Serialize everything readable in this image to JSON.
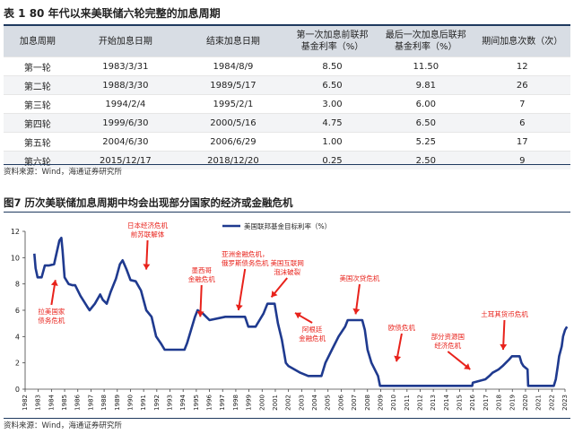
{
  "table": {
    "title": "表 1 80 年代以来美联储六轮完整的加息周期",
    "headers": [
      "加息周期",
      "开始加息日期",
      "结束加息日期",
      "第一次加息前联邦\n基金利率（%）",
      "最后一次加息后联邦\n基金利率（%）",
      "期间加息次数（次）"
    ],
    "rows": [
      [
        "第一轮",
        "1983/3/31",
        "1984/8/9",
        "8.50",
        "11.50",
        "12"
      ],
      [
        "第二轮",
        "1988/3/30",
        "1989/5/17",
        "6.50",
        "9.81",
        "26"
      ],
      [
        "第三轮",
        "1994/2/4",
        "1995/2/1",
        "3.00",
        "6.00",
        "7"
      ],
      [
        "第四轮",
        "1999/6/30",
        "2000/5/16",
        "4.75",
        "6.50",
        "6"
      ],
      [
        "第五轮",
        "2004/6/30",
        "2006/6/29",
        "1.00",
        "5.25",
        "17"
      ],
      [
        "第六轮",
        "2015/12/17",
        "2018/12/20",
        "0.25",
        "2.50",
        "9"
      ]
    ],
    "source": "资料来源：Wind，海通证券研究所"
  },
  "figure": {
    "title": "图7  历次美联储加息周期中均会出现部分国家的经济或金融危机",
    "source": "资料来源：Wind，海通证券研究所"
  },
  "chart_data": {
    "type": "line",
    "title": "",
    "xlabel": "",
    "ylabel": "",
    "ylim": [
      0,
      12
    ],
    "yticks": [
      0,
      2,
      4,
      6,
      8,
      10,
      12
    ],
    "xlim": [
      1982,
      2023
    ],
    "xticks": [
      "1982",
      "1983",
      "1984",
      "1985",
      "1986",
      "1987",
      "1988",
      "1989",
      "1990",
      "1991",
      "1992",
      "1993",
      "1994",
      "1995",
      "1996",
      "1997",
      "1998",
      "1999",
      "2000",
      "2001",
      "2002",
      "2003",
      "2004",
      "2005",
      "2006",
      "2007",
      "2008",
      "2009",
      "2010",
      "2011",
      "2012",
      "2013",
      "2014",
      "2015",
      "2016",
      "2017",
      "2018",
      "2019",
      "2020",
      "2021",
      "2022",
      "2023"
    ],
    "legend": "top-center",
    "grid": false,
    "series": [
      {
        "name": "美国联邦基金目标利率（%）",
        "color": "#1f3a8f",
        "points": [
          [
            1982.7,
            10.3
          ],
          [
            1982.8,
            9.2
          ],
          [
            1982.95,
            8.5
          ],
          [
            1983.25,
            8.5
          ],
          [
            1983.5,
            9.4
          ],
          [
            1983.8,
            9.4
          ],
          [
            1984.2,
            9.5
          ],
          [
            1984.6,
            11.3
          ],
          [
            1984.75,
            11.5
          ],
          [
            1984.85,
            10.5
          ],
          [
            1985.0,
            8.5
          ],
          [
            1985.3,
            8.0
          ],
          [
            1985.6,
            7.9
          ],
          [
            1985.8,
            7.9
          ],
          [
            1986.2,
            7.1
          ],
          [
            1986.7,
            6.3
          ],
          [
            1986.9,
            6.0
          ],
          [
            1987.3,
            6.5
          ],
          [
            1987.7,
            7.2
          ],
          [
            1987.9,
            6.8
          ],
          [
            1988.2,
            6.5
          ],
          [
            1988.5,
            7.4
          ],
          [
            1988.9,
            8.4
          ],
          [
            1989.2,
            9.5
          ],
          [
            1989.4,
            9.8
          ],
          [
            1989.7,
            9.1
          ],
          [
            1990.0,
            8.3
          ],
          [
            1990.4,
            8.2
          ],
          [
            1990.8,
            7.5
          ],
          [
            1991.2,
            6.0
          ],
          [
            1991.6,
            5.5
          ],
          [
            1991.95,
            4.0
          ],
          [
            1992.3,
            3.5
          ],
          [
            1992.6,
            3.0
          ],
          [
            1993.5,
            3.0
          ],
          [
            1994.1,
            3.0
          ],
          [
            1994.3,
            3.5
          ],
          [
            1994.6,
            4.5
          ],
          [
            1994.9,
            5.5
          ],
          [
            1995.1,
            6.0
          ],
          [
            1995.5,
            5.75
          ],
          [
            1996.0,
            5.25
          ],
          [
            1997.2,
            5.5
          ],
          [
            1998.7,
            5.5
          ],
          [
            1998.95,
            4.75
          ],
          [
            1999.5,
            4.75
          ],
          [
            1999.8,
            5.25
          ],
          [
            2000.1,
            5.75
          ],
          [
            2000.4,
            6.5
          ],
          [
            2000.95,
            6.5
          ],
          [
            2001.2,
            5.0
          ],
          [
            2001.5,
            3.75
          ],
          [
            2001.8,
            2.0
          ],
          [
            2002.0,
            1.75
          ],
          [
            2002.9,
            1.25
          ],
          [
            2003.5,
            1.0
          ],
          [
            2004.5,
            1.0
          ],
          [
            2004.8,
            2.0
          ],
          [
            2005.3,
            3.0
          ],
          [
            2005.8,
            4.0
          ],
          [
            2006.3,
            4.75
          ],
          [
            2006.5,
            5.25
          ],
          [
            2007.6,
            5.25
          ],
          [
            2007.8,
            4.5
          ],
          [
            2008.0,
            3.0
          ],
          [
            2008.3,
            2.0
          ],
          [
            2008.8,
            1.0
          ],
          [
            2008.95,
            0.25
          ],
          [
            2015.95,
            0.25
          ],
          [
            2016.0,
            0.5
          ],
          [
            2016.95,
            0.75
          ],
          [
            2017.25,
            1.0
          ],
          [
            2017.5,
            1.25
          ],
          [
            2017.95,
            1.5
          ],
          [
            2018.25,
            1.75
          ],
          [
            2018.5,
            2.0
          ],
          [
            2018.75,
            2.25
          ],
          [
            2018.97,
            2.5
          ],
          [
            2019.55,
            2.5
          ],
          [
            2019.7,
            2.0
          ],
          [
            2019.85,
            1.75
          ],
          [
            2020.15,
            1.5
          ],
          [
            2020.2,
            0.25
          ],
          [
            2022.15,
            0.25
          ],
          [
            2022.3,
            0.75
          ],
          [
            2022.45,
            1.75
          ],
          [
            2022.55,
            2.5
          ],
          [
            2022.75,
            3.25
          ],
          [
            2022.85,
            4.0
          ],
          [
            2023.0,
            4.5
          ],
          [
            2023.15,
            4.75
          ]
        ]
      }
    ],
    "annotations": [
      {
        "text": [
          "拉美国家",
          "债务危机"
        ],
        "x": 1984.0,
        "arrow_tip": [
          1984.3,
          8.3
        ]
      },
      {
        "text": [
          "日本经济危机",
          "前苏联解体"
        ],
        "x": 1991.3,
        "arrow_tip": [
          1991.2,
          9.1
        ]
      },
      {
        "text": [
          "墨西哥",
          "金融危机"
        ],
        "x": 1995.4,
        "arrow_tip": [
          1995.3,
          5.5
        ]
      },
      {
        "text": [
          "亚洲金融危机，",
          "俄罗斯债务危机"
        ],
        "x": 1998.7,
        "arrow_tip": [
          1998.2,
          6.0
        ]
      },
      {
        "text": [
          "美国互联网",
          "泡沫破裂"
        ],
        "x": 2001.9,
        "arrow_tip": [
          2000.7,
          7.0
        ]
      },
      {
        "text": [
          "阿根廷",
          "金融危机"
        ],
        "x": 2003.8,
        "arrow_tip": [
          2002.5,
          5.8
        ]
      },
      {
        "text": [
          "美国次贷危机"
        ],
        "x": 2007.4,
        "arrow_tip": [
          2007.1,
          5.7
        ]
      },
      {
        "text": [
          "欧债危机"
        ],
        "x": 2010.6,
        "arrow_tip": [
          2010.2,
          2.1
        ]
      },
      {
        "text": [
          "部分资源国",
          "经济危机"
        ],
        "x": 2014.1,
        "arrow_tip": [
          2015.8,
          1.5
        ]
      },
      {
        "text": [
          "土耳其货币危机"
        ],
        "x": 2018.4,
        "arrow_tip": [
          2018.3,
          3.0
        ]
      }
    ]
  }
}
